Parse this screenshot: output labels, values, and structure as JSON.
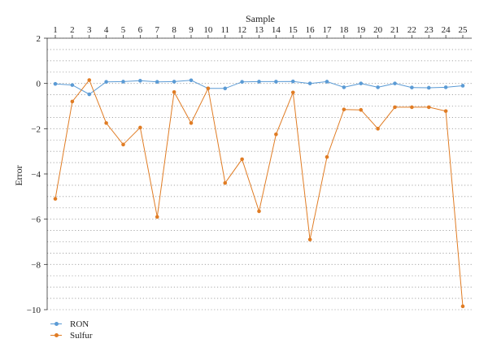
{
  "chart_data": {
    "type": "line",
    "xlabel": "Sample",
    "ylabel": "Error",
    "x_axis_position": "top",
    "categories": [
      "1",
      "2",
      "3",
      "4",
      "5",
      "6",
      "7",
      "8",
      "9",
      "10",
      "11",
      "12",
      "13",
      "14",
      "15",
      "16",
      "17",
      "18",
      "19",
      "20",
      "21",
      "22",
      "23",
      "24",
      "25"
    ],
    "ylim": [
      -10,
      2
    ],
    "yticks": [
      "2",
      "0",
      "−2",
      "−4",
      "−6",
      "−8",
      "−10"
    ],
    "ytick_values": [
      2,
      0,
      -2,
      -4,
      -6,
      -8,
      -10
    ],
    "grid": "dotted horizontal",
    "legend_position": "bottom-left",
    "series": [
      {
        "name": "RON",
        "color": "#5b9bd5",
        "values": [
          -0.02,
          -0.07,
          -0.48,
          0.07,
          0.08,
          0.12,
          0.07,
          0.08,
          0.14,
          -0.22,
          -0.22,
          0.07,
          0.08,
          0.08,
          0.09,
          0.0,
          0.08,
          -0.17,
          0.0,
          -0.17,
          0.0,
          -0.18,
          -0.19,
          -0.17,
          -0.1
        ]
      },
      {
        "name": "Sulfur",
        "color": "#e07c24",
        "values": [
          -5.1,
          -0.8,
          0.15,
          -1.75,
          -2.7,
          -1.95,
          -5.9,
          -0.38,
          -1.75,
          -0.22,
          -4.4,
          -3.35,
          -5.65,
          -2.25,
          -0.4,
          -6.9,
          -3.25,
          -1.15,
          -1.17,
          -2.0,
          -1.05,
          -1.05,
          -1.05,
          -1.22,
          -9.85
        ]
      }
    ]
  }
}
